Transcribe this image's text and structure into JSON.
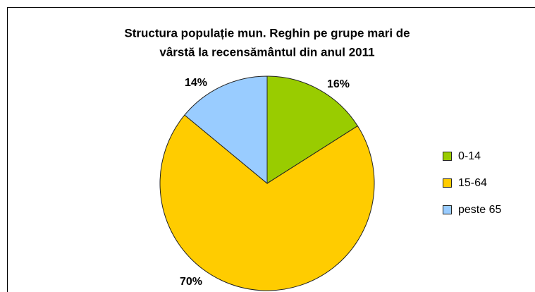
{
  "chart_data": {
    "type": "pie",
    "title": [
      "Structura populație mun. Reghin pe grupe mari de",
      "vârstă la recensământul din anul 2011"
    ],
    "categories": [
      "0-14",
      "15-64",
      "peste 65"
    ],
    "values": [
      16,
      70,
      14
    ],
    "value_labels": [
      "16%",
      "70%",
      "14%"
    ],
    "colors": [
      "#99cc00",
      "#ffcc00",
      "#99ccff"
    ],
    "legend": "right"
  }
}
